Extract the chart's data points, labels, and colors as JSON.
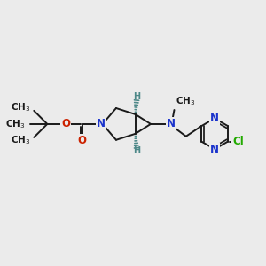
{
  "background_color": "#ebebeb",
  "bond_color": "#1a1a1a",
  "N_color": "#1a33cc",
  "O_color": "#cc2200",
  "Cl_color": "#22aa00",
  "H_color": "#4d8888",
  "figsize": [
    3.0,
    3.0
  ],
  "dpi": 100,
  "xlim": [
    0,
    10
  ],
  "ylim": [
    0,
    10
  ]
}
